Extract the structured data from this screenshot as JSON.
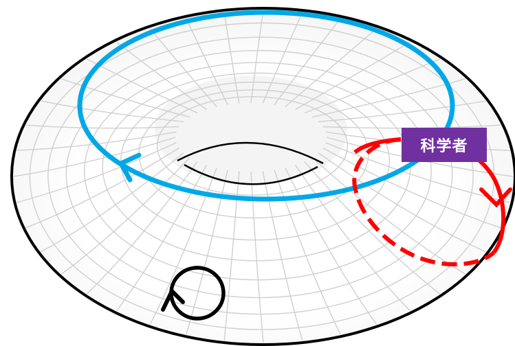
{
  "label": {
    "text": "科学者",
    "background": "#7030a0",
    "color": "#ffffff"
  },
  "colors": {
    "outline": "#000000",
    "grid": "#cfcfcf",
    "longitude_loop": "#00a8e8",
    "meridian_loop": "#ff0000",
    "contractible_loop": "#000000"
  },
  "loops": {
    "longitude": {
      "icon": "arrowhead-icon",
      "style": "solid"
    },
    "meridian": {
      "icon": "arrowhead-icon",
      "style": "dashed-back-solid-front"
    },
    "contractible": {
      "icon": "arrowhead-icon",
      "style": "solid"
    }
  }
}
